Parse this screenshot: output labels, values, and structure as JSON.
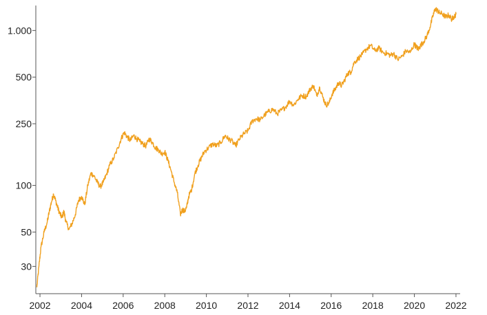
{
  "chart_data": {
    "type": "line",
    "title": "",
    "xlabel": "",
    "ylabel": "",
    "y_scale": "log",
    "xlim": [
      2001.8,
      2022.2
    ],
    "ylim": [
      20,
      1450
    ],
    "grid": false,
    "legend": "none",
    "x_ticks": [
      {
        "value": 2002,
        "label": "2002"
      },
      {
        "value": 2004,
        "label": "2004"
      },
      {
        "value": 2006,
        "label": "2006"
      },
      {
        "value": 2008,
        "label": "2008"
      },
      {
        "value": 2010,
        "label": "2010"
      },
      {
        "value": 2012,
        "label": "2012"
      },
      {
        "value": 2014,
        "label": "2014"
      },
      {
        "value": 2016,
        "label": "2016"
      },
      {
        "value": 2018,
        "label": "2018"
      },
      {
        "value": 2020,
        "label": "2020"
      },
      {
        "value": 2022,
        "label": "2022"
      }
    ],
    "y_ticks": [
      {
        "value": 30,
        "label": "30"
      },
      {
        "value": 50,
        "label": "50"
      },
      {
        "value": 100,
        "label": "100"
      },
      {
        "value": 250,
        "label": "250"
      },
      {
        "value": 500,
        "label": "500"
      },
      {
        "value": 1000,
        "label": "1.000"
      }
    ],
    "series": [
      {
        "color": "#f0a01e",
        "x": [
          2001.85,
          2001.95,
          2002.05,
          2002.2,
          2002.35,
          2002.45,
          2002.55,
          2002.65,
          2002.75,
          2002.85,
          2002.95,
          2003.05,
          2003.15,
          2003.25,
          2003.4,
          2003.55,
          2003.7,
          2003.85,
          2004.0,
          2004.15,
          2004.3,
          2004.45,
          2004.6,
          2004.75,
          2004.9,
          2005.05,
          2005.2,
          2005.35,
          2005.55,
          2005.75,
          2005.9,
          2006.05,
          2006.2,
          2006.35,
          2006.5,
          2006.65,
          2006.8,
          2006.95,
          2007.1,
          2007.25,
          2007.4,
          2007.55,
          2007.7,
          2007.85,
          2008.0,
          2008.15,
          2008.3,
          2008.45,
          2008.6,
          2008.75,
          2008.85,
          2008.95,
          2009.05,
          2009.15,
          2009.3,
          2009.45,
          2009.6,
          2009.75,
          2009.9,
          2010.1,
          2010.3,
          2010.5,
          2010.7,
          2010.9,
          2011.05,
          2011.2,
          2011.4,
          2011.6,
          2011.8,
          2012.0,
          2012.2,
          2012.4,
          2012.6,
          2012.8,
          2013.0,
          2013.2,
          2013.4,
          2013.6,
          2013.8,
          2014.0,
          2014.2,
          2014.4,
          2014.6,
          2014.8,
          2015.0,
          2015.15,
          2015.3,
          2015.45,
          2015.6,
          2015.75,
          2015.9,
          2016.05,
          2016.2,
          2016.35,
          2016.5,
          2016.65,
          2016.8,
          2016.95,
          2017.1,
          2017.3,
          2017.5,
          2017.7,
          2017.9,
          2018.1,
          2018.3,
          2018.5,
          2018.7,
          2018.85,
          2019.0,
          2019.2,
          2019.4,
          2019.6,
          2019.8,
          2020.0,
          2020.1,
          2020.2,
          2020.3,
          2020.45,
          2020.6,
          2020.75,
          2020.9,
          2021.0,
          2021.1,
          2021.2,
          2021.35,
          2021.5,
          2021.65,
          2021.8,
          2021.9,
          2022.0
        ],
        "values": [
          22,
          30,
          40,
          50,
          58,
          68,
          78,
          88,
          80,
          72,
          66,
          62,
          68,
          58,
          52,
          57,
          65,
          80,
          85,
          75,
          100,
          120,
          115,
          105,
          98,
          105,
          118,
          135,
          150,
          175,
          200,
          220,
          205,
          195,
          210,
          200,
          192,
          185,
          180,
          200,
          190,
          175,
          170,
          160,
          165,
          145,
          125,
          105,
          90,
          65,
          70,
          68,
          72,
          85,
          95,
          120,
          135,
          150,
          165,
          175,
          185,
          180,
          190,
          210,
          200,
          195,
          180,
          200,
          215,
          225,
          260,
          270,
          265,
          285,
          300,
          310,
          290,
          305,
          320,
          350,
          330,
          360,
          380,
          375,
          420,
          440,
          380,
          430,
          370,
          330,
          340,
          390,
          420,
          460,
          440,
          480,
          530,
          540,
          620,
          660,
          700,
          760,
          800,
          740,
          770,
          720,
          710,
          690,
          710,
          650,
          680,
          740,
          720,
          820,
          780,
          760,
          800,
          850,
          920,
          1050,
          1250,
          1380,
          1350,
          1300,
          1280,
          1220,
          1260,
          1180,
          1230,
          1270
        ]
      }
    ]
  }
}
